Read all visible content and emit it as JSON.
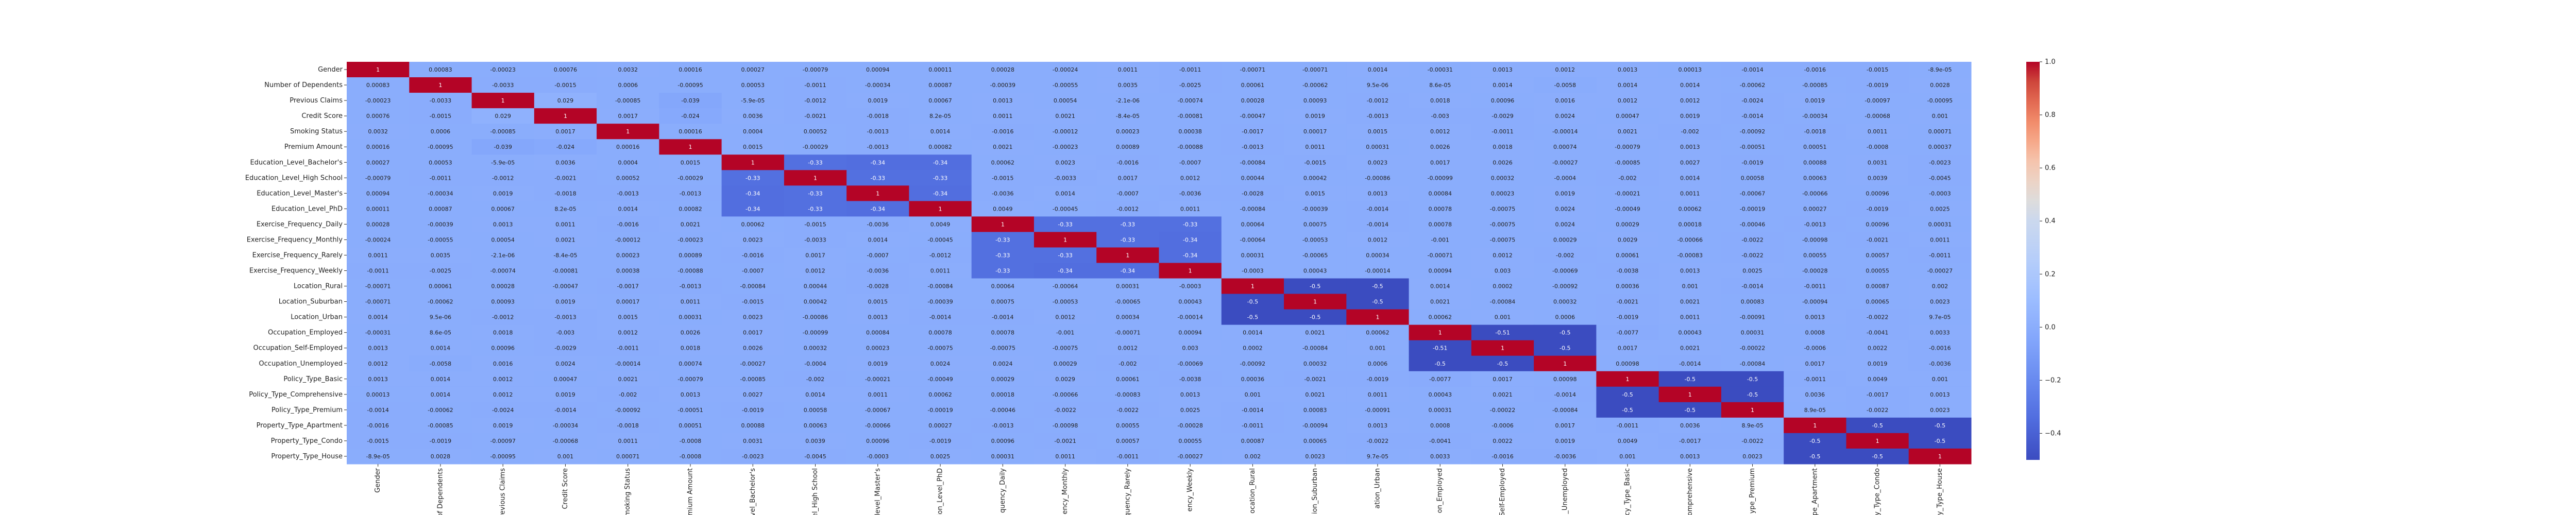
{
  "chart_data": {
    "type": "heatmap",
    "title": "",
    "xlabel": "",
    "ylabel": "",
    "colormap": "coolwarm",
    "vmin": -0.5,
    "vmax": 1,
    "colorbar_ticks": [
      "1.0",
      "0.8",
      "0.6",
      "0.4",
      "0.2",
      "0.0",
      "−0.2",
      "−0.4"
    ],
    "colorbar_tick_values": [
      1.0,
      0.8,
      0.6,
      0.4,
      0.2,
      0.0,
      -0.2,
      -0.4
    ],
    "row_labels": [
      "Gender",
      "Number of Dependents",
      "Previous Claims",
      "Credit Score",
      "Smoking Status",
      "Premium Amount",
      "Education_Level_Bachelor's",
      "Education_Level_High School",
      "Education_Level_Master's",
      "Education_Level_PhD",
      "Exercise_Frequency_Daily",
      "Exercise_Frequency_Monthly",
      "Exercise_Frequency_Rarely",
      "Exercise_Frequency_Weekly",
      "Location_Rural",
      "Location_Suburban",
      "Location_Urban",
      "Occupation_Employed",
      "Occupation_Self-Employed",
      "Occupation_Unemployed",
      "Policy_Type_Basic",
      "Policy_Type_Comprehensive",
      "Policy_Type_Premium",
      "Property_Type_Apartment",
      "Property_Type_Condo",
      "Property_Type_House"
    ],
    "col_labels": [
      "Gender",
      "r of Dependents",
      "revious Claims",
      "Credit Score",
      "moking Status",
      "mium Amount",
      "evel_Bachelor's",
      "el_High School",
      "level_Master's",
      "ion_Level_PhD",
      "quency_Daily",
      "ency_Monthly",
      "quency_Rarely",
      "ency_Weekly",
      "ocation_Rural",
      "ion_Suburban",
      "ation_Urban",
      "on_Employed",
      "Self-Employed",
      "_Unemployed",
      "cy_Type_Basic",
      "omprehensive",
      "ype_Premium",
      "pe_Apartment",
      "y_Type_Condo",
      "y_Type_House"
    ],
    "cell_text": [
      [
        "1",
        "0.00083",
        "-0.00023",
        "0.00076",
        "0.0032",
        "0.00016",
        "0.00027",
        "-0.00079",
        "0.00094",
        "0.00011",
        "0.00028",
        "-0.00024",
        "0.0011",
        "-0.0011",
        "-0.00071",
        "-0.00071",
        "0.0014",
        "-0.00031",
        "0.0013",
        "0.0012",
        "0.0013",
        "0.00013",
        "-0.0014",
        "-0.0016",
        "-0.0015",
        "-8.9e-05"
      ],
      [
        "0.00083",
        "1",
        "-0.0033",
        "-0.0015",
        "0.0006",
        "-0.00095",
        "0.00053",
        "-0.0011",
        "-0.00034",
        "0.00087",
        "-0.00039",
        "-0.00055",
        "0.0035",
        "-0.0025",
        "0.00061",
        "-0.00062",
        "9.5e-06",
        "8.6e-05",
        "0.0014",
        "-0.0058",
        "0.0014",
        "0.0014",
        "-0.00062",
        "-0.00085",
        "-0.0019",
        "0.0028"
      ],
      [
        "-0.00023",
        "-0.0033",
        "1",
        "0.029",
        "-0.00085",
        "-0.039",
        "-5.9e-05",
        "-0.0012",
        "0.0019",
        "0.00067",
        "0.0013",
        "0.00054",
        "-2.1e-06",
        "-0.00074",
        "0.00028",
        "0.00093",
        "-0.0012",
        "0.0018",
        "0.00096",
        "0.0016",
        "0.0012",
        "0.0012",
        "-0.0024",
        "0.0019",
        "-0.00097",
        "-0.00095"
      ],
      [
        "0.00076",
        "-0.0015",
        "0.029",
        "1",
        "0.0017",
        "-0.024",
        "0.0036",
        "-0.0021",
        "-0.0018",
        "8.2e-05",
        "0.0011",
        "0.0021",
        "-8.4e-05",
        "-0.00081",
        "-0.00047",
        "0.0019",
        "-0.0013",
        "-0.003",
        "-0.0029",
        "0.0024",
        "0.00047",
        "0.0019",
        "-0.0014",
        "-0.00034",
        "-0.00068",
        "0.001"
      ],
      [
        "0.0032",
        "0.0006",
        "-0.00085",
        "0.0017",
        "1",
        "0.00016",
        "0.0004",
        "0.00052",
        "-0.0013",
        "0.0014",
        "-0.0016",
        "-0.00012",
        "0.00023",
        "0.00038",
        "-0.0017",
        "0.00017",
        "0.0015",
        "0.0012",
        "-0.0011",
        "-0.00014",
        "0.0021",
        "-0.002",
        "-0.00092",
        "-0.0018",
        "0.0011",
        "0.00071"
      ],
      [
        "0.00016",
        "-0.00095",
        "-0.039",
        "-0.024",
        "0.00016",
        "1",
        "0.0015",
        "-0.00029",
        "-0.0013",
        "0.00082",
        "0.0021",
        "-0.00023",
        "0.00089",
        "-0.00088",
        "-0.0013",
        "0.0011",
        "0.00031",
        "0.0026",
        "0.0018",
        "0.00074",
        "-0.00079",
        "0.0013",
        "-0.00051",
        "0.00051",
        "-0.0008",
        "0.00037"
      ],
      [
        "0.00027",
        "0.00053",
        "-5.9e-05",
        "0.0036",
        "0.0004",
        "0.0015",
        "1",
        "-0.33",
        "-0.34",
        "-0.34",
        "0.00062",
        "0.0023",
        "-0.0016",
        "-0.0007",
        "-0.00084",
        "-0.0015",
        "0.0023",
        "0.0017",
        "0.0026",
        "-0.00027",
        "-0.00085",
        "0.0027",
        "-0.0019",
        "0.00088",
        "0.0031",
        "-0.0023"
      ],
      [
        "-0.00079",
        "-0.0011",
        "-0.0012",
        "-0.0021",
        "0.00052",
        "-0.00029",
        "-0.33",
        "1",
        "-0.33",
        "-0.33",
        "-0.0015",
        "-0.0033",
        "0.0017",
        "0.0012",
        "0.00044",
        "0.00042",
        "-0.00086",
        "-0.00099",
        "0.00032",
        "-0.0004",
        "-0.002",
        "0.0014",
        "0.00058",
        "0.00063",
        "0.0039",
        "-0.0045"
      ],
      [
        "0.00094",
        "-0.00034",
        "0.0019",
        "-0.0018",
        "-0.0013",
        "-0.0013",
        "-0.34",
        "-0.33",
        "1",
        "-0.34",
        "-0.0036",
        "0.0014",
        "-0.0007",
        "-0.0036",
        "-0.0028",
        "0.0015",
        "0.0013",
        "0.00084",
        "0.00023",
        "0.0019",
        "-0.00021",
        "0.0011",
        "-0.00067",
        "-0.00066",
        "0.00096",
        "-0.0003"
      ],
      [
        "0.00011",
        "0.00087",
        "0.00067",
        "8.2e-05",
        "0.0014",
        "0.00082",
        "-0.34",
        "-0.33",
        "-0.34",
        "1",
        "0.0049",
        "-0.00045",
        "-0.0012",
        "0.0011",
        "-0.00084",
        "-0.00039",
        "-0.0014",
        "0.00078",
        "-0.00075",
        "0.0024",
        "-0.00049",
        "0.00062",
        "-0.00019",
        "0.00027",
        "-0.0019",
        "0.0025"
      ],
      [
        "0.00028",
        "-0.00039",
        "0.0013",
        "0.0011",
        "-0.0016",
        "0.0021",
        "0.00062",
        "-0.0015",
        "-0.0036",
        "0.0049",
        "1",
        "-0.33",
        "-0.33",
        "-0.33",
        "0.00064",
        "0.00075",
        "-0.0014",
        "0.00078",
        "-0.00075",
        "0.0024",
        "0.00029",
        "0.00018",
        "-0.00046",
        "-0.0013",
        "0.00096",
        "0.00031"
      ],
      [
        "-0.00024",
        "-0.00055",
        "0.00054",
        "0.0021",
        "-0.00012",
        "-0.00023",
        "0.0023",
        "-0.0033",
        "0.0014",
        "-0.00045",
        "-0.33",
        "1",
        "-0.33",
        "-0.34",
        "-0.00064",
        "-0.00053",
        "0.0012",
        "-0.001",
        "-0.00075",
        "0.00029",
        "0.0029",
        "-0.00066",
        "-0.0022",
        "-0.00098",
        "-0.0021",
        "0.0011"
      ],
      [
        "0.0011",
        "0.0035",
        "-2.1e-06",
        "-8.4e-05",
        "0.00023",
        "0.00089",
        "-0.0016",
        "0.0017",
        "-0.0007",
        "-0.0012",
        "-0.33",
        "-0.33",
        "1",
        "-0.34",
        "0.00031",
        "-0.00065",
        "0.00034",
        "-0.00071",
        "0.0012",
        "-0.002",
        "0.00061",
        "-0.00083",
        "-0.0022",
        "0.00055",
        "0.00057",
        "-0.0011"
      ],
      [
        "-0.0011",
        "-0.0025",
        "-0.00074",
        "-0.00081",
        "0.00038",
        "-0.00088",
        "-0.0007",
        "0.0012",
        "-0.0036",
        "0.0011",
        "-0.33",
        "-0.34",
        "-0.34",
        "1",
        "-0.0003",
        "0.00043",
        "-0.00014",
        "0.00094",
        "0.003",
        "-0.00069",
        "-0.0038",
        "0.0013",
        "0.0025",
        "-0.00028",
        "0.00055",
        "-0.00027"
      ],
      [
        "-0.00071",
        "0.00061",
        "0.00028",
        "-0.00047",
        "-0.0017",
        "-0.0013",
        "-0.00084",
        "0.00044",
        "-0.0028",
        "-0.00084",
        "0.00064",
        "-0.00064",
        "0.00031",
        "-0.0003",
        "1",
        "-0.5",
        "-0.5",
        "0.0014",
        "0.0002",
        "-0.00092",
        "0.00036",
        "0.001",
        "-0.0014",
        "-0.0011",
        "0.00087",
        "0.002"
      ],
      [
        "-0.00071",
        "-0.00062",
        "0.00093",
        "0.0019",
        "0.00017",
        "0.0011",
        "-0.0015",
        "0.00042",
        "0.0015",
        "-0.00039",
        "0.00075",
        "-0.00053",
        "-0.00065",
        "0.00043",
        "-0.5",
        "1",
        "-0.5",
        "0.0021",
        "-0.00084",
        "0.00032",
        "-0.0021",
        "0.0021",
        "0.00083",
        "-0.00094",
        "0.00065",
        "0.0023"
      ],
      [
        "0.0014",
        "9.5e-06",
        "-0.0012",
        "-0.0013",
        "0.0015",
        "0.00031",
        "0.0023",
        "-0.00086",
        "0.0013",
        "-0.0014",
        "-0.0014",
        "0.0012",
        "0.00034",
        "-0.00014",
        "-0.5",
        "-0.5",
        "1",
        "0.00062",
        "0.001",
        "0.0006",
        "-0.0019",
        "0.0011",
        "-0.00091",
        "0.0013",
        "-0.0022",
        "9.7e-05"
      ],
      [
        "-0.00031",
        "8.6e-05",
        "0.0018",
        "-0.003",
        "0.0012",
        "0.0026",
        "0.0017",
        "-0.00099",
        "0.00084",
        "0.00078",
        "0.00078",
        "-0.001",
        "-0.00071",
        "0.00094",
        "0.0014",
        "0.0021",
        "0.00062",
        "1",
        "-0.51",
        "-0.5",
        "-0.0077",
        "0.00043",
        "0.00031",
        "0.0008",
        "-0.0041",
        "0.0033"
      ],
      [
        "0.0013",
        "0.0014",
        "0.00096",
        "-0.0029",
        "-0.0011",
        "0.0018",
        "0.0026",
        "0.00032",
        "0.00023",
        "-0.00075",
        "-0.00075",
        "-0.00075",
        "0.0012",
        "0.003",
        "0.0002",
        "-0.00084",
        "0.001",
        "-0.51",
        "1",
        "-0.5",
        "0.0017",
        "0.0021",
        "-0.00022",
        "-0.0006",
        "0.0022",
        "-0.0016"
      ],
      [
        "0.0012",
        "-0.0058",
        "0.0016",
        "0.0024",
        "-0.00014",
        "0.00074",
        "-0.00027",
        "-0.0004",
        "0.0019",
        "0.0024",
        "0.0024",
        "0.00029",
        "-0.002",
        "-0.00069",
        "-0.00092",
        "0.00032",
        "0.0006",
        "-0.5",
        "-0.5",
        "1",
        "0.00098",
        "-0.0014",
        "-0.00084",
        "0.0017",
        "0.0019",
        "-0.0036"
      ],
      [
        "0.0013",
        "0.0014",
        "0.0012",
        "0.00047",
        "0.0021",
        "-0.00079",
        "-0.00085",
        "-0.002",
        "-0.00021",
        "-0.00049",
        "0.00029",
        "0.0029",
        "0.00061",
        "-0.0038",
        "0.00036",
        "-0.0021",
        "-0.0019",
        "-0.0077",
        "0.0017",
        "0.00098",
        "1",
        "-0.5",
        "-0.5",
        "-0.0011",
        "0.0049",
        "0.001"
      ],
      [
        "0.00013",
        "0.0014",
        "0.0012",
        "0.0019",
        "-0.002",
        "0.0013",
        "0.0027",
        "0.0014",
        "0.0011",
        "0.00062",
        "0.00018",
        "-0.00066",
        "-0.00083",
        "0.0013",
        "0.001",
        "0.0021",
        "0.0011",
        "0.00043",
        "0.0021",
        "-0.0014",
        "-0.5",
        "1",
        "-0.5",
        "0.0036",
        "-0.0017",
        "0.0013"
      ],
      [
        "-0.0014",
        "-0.00062",
        "-0.0024",
        "-0.0014",
        "-0.00092",
        "-0.00051",
        "-0.0019",
        "0.00058",
        "-0.00067",
        "-0.00019",
        "-0.00046",
        "-0.0022",
        "-0.0022",
        "0.0025",
        "-0.0014",
        "0.00083",
        "-0.00091",
        "0.00031",
        "-0.00022",
        "-0.00084",
        "-0.5",
        "-0.5",
        "1",
        "8.9e-05",
        "-0.0022",
        "0.0023"
      ],
      [
        "-0.0016",
        "-0.00085",
        "0.0019",
        "-0.00034",
        "-0.0018",
        "0.00051",
        "0.00088",
        "0.00063",
        "-0.00066",
        "0.00027",
        "-0.0013",
        "-0.00098",
        "0.00055",
        "-0.00028",
        "-0.0011",
        "-0.00094",
        "0.0013",
        "0.0008",
        "-0.0006",
        "0.0017",
        "-0.0011",
        "0.0036",
        "8.9e-05",
        "1",
        "-0.5",
        "-0.5"
      ],
      [
        "-0.0015",
        "-0.0019",
        "-0.00097",
        "-0.00068",
        "0.0011",
        "-0.0008",
        "0.0031",
        "0.0039",
        "0.00096",
        "-0.0019",
        "0.00096",
        "-0.0021",
        "0.00057",
        "0.00055",
        "0.00087",
        "0.00065",
        "-0.0022",
        "-0.0041",
        "0.0022",
        "0.0019",
        "0.0049",
        "-0.0017",
        "-0.0022",
        "-0.5",
        "1",
        "-0.5"
      ],
      [
        "-8.9e-05",
        "0.0028",
        "-0.00095",
        "0.001",
        "0.00071",
        "-0.0008",
        "-0.0023",
        "-0.0045",
        "-0.0003",
        "0.0025",
        "0.00031",
        "0.0011",
        "-0.0011",
        "-0.00027",
        "0.002",
        "0.0023",
        "9.7e-05",
        "0.0033",
        "-0.0016",
        "-0.0036",
        "0.001",
        "0.0013",
        "0.0023",
        "-0.5",
        "-0.5",
        "1"
      ]
    ]
  }
}
